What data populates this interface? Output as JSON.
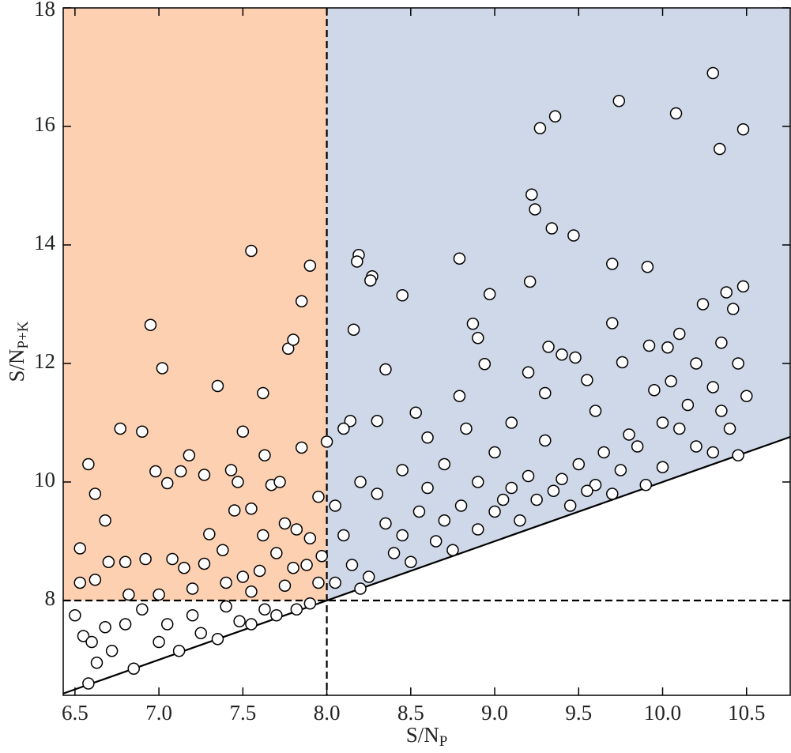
{
  "chart_data": {
    "type": "scatter",
    "xlabel": {
      "text": "S/N",
      "subscript": "P"
    },
    "ylabel": {
      "text": "S/N",
      "subscript": "P+K"
    },
    "xlim": [
      6.43,
      10.76
    ],
    "ylim": [
      6.4,
      18
    ],
    "xticks": [
      6.5,
      {
        "value": 7,
        "label": "7.0"
      },
      7.5,
      {
        "value": 8,
        "label": "8.0"
      },
      8.5,
      {
        "value": 9,
        "label": "9.0"
      },
      9.5,
      {
        "value": 10,
        "label": "10.0"
      },
      10.5
    ],
    "yticks": [
      8,
      10,
      12,
      14,
      16,
      18
    ],
    "vline": 8,
    "hline": 8,
    "identity_line": true,
    "left_region_color": "#fdd0b1",
    "right_region_color": "#cfd8e8",
    "marker_fill": "#ffffff",
    "marker_edge": "#000000",
    "x": [
      7.55,
      7.9,
      7.85,
      7.77,
      7.8,
      6.95,
      7.02,
      7.35,
      7.62,
      6.77,
      6.9,
      7.5,
      6.58,
      6.62,
      6.68,
      6.98,
      7.05,
      7.13,
      7.18,
      7.27,
      7.43,
      7.47,
      7.63,
      7.67,
      7.72,
      7.85,
      8.0,
      7.95,
      7.3,
      7.45,
      7.55,
      7.62,
      7.75,
      7.82,
      7.9,
      6.53,
      6.53,
      6.62,
      6.7,
      6.8,
      6.92,
      7.08,
      7.15,
      7.27,
      7.38,
      7.5,
      7.6,
      7.7,
      7.8,
      7.88,
      7.97,
      6.82,
      7.0,
      7.2,
      7.4,
      7.55,
      7.75,
      7.95,
      6.5,
      6.55,
      6.6,
      6.58,
      6.63,
      6.68,
      6.72,
      6.8,
      6.85,
      6.9,
      7.0,
      7.05,
      7.12,
      7.2,
      7.25,
      7.35,
      7.4,
      7.48,
      7.55,
      7.63,
      7.7,
      7.82,
      7.9,
      10.3,
      9.74,
      10.08,
      9.36,
      9.27,
      10.48,
      10.34,
      9.22,
      9.24,
      9.34,
      9.47,
      8.19,
      8.18,
      8.79,
      9.7,
      8.27,
      8.26,
      9.91,
      9.21,
      10.48,
      10.38,
      8.45,
      8.97,
      10.24,
      10.42,
      9.7,
      8.87,
      8.16,
      10.1,
      8.9,
      10.35,
      9.92,
      9.32,
      10.03,
      9.4,
      9.48,
      8.35,
      8.94,
      9.76,
      10.2,
      9.2,
      10.05,
      9.55,
      8.79,
      9.3,
      9.95,
      10.3,
      10.5,
      8.53,
      8.3,
      8.14,
      8.1,
      8.83,
      8.6,
      9.1,
      9.6,
      10.0,
      10.4,
      8.45,
      8.2,
      8.7,
      9.0,
      9.3,
      9.8,
      10.2,
      10.45,
      8.05,
      8.3,
      8.6,
      8.9,
      9.2,
      9.5,
      9.75,
      10.0,
      10.3,
      8.1,
      8.35,
      8.55,
      8.8,
      9.05,
      9.35,
      9.6,
      9.9,
      8.15,
      8.4,
      8.65,
      8.9,
      9.15,
      9.45,
      9.7,
      8.05,
      8.25,
      8.5,
      8.75,
      8.2,
      9.0,
      9.25,
      9.55,
      8.45,
      8.7,
      9.1,
      9.4,
      9.65,
      9.85,
      10.1,
      10.35,
      10.15,
      10.45
    ],
    "values": [
      13.9,
      13.65,
      13.05,
      12.25,
      12.4,
      12.65,
      11.92,
      11.62,
      11.5,
      10.9,
      10.85,
      10.85,
      10.3,
      9.8,
      9.35,
      10.18,
      9.98,
      10.18,
      10.45,
      10.12,
      10.2,
      10.0,
      10.45,
      9.95,
      10.0,
      10.58,
      10.68,
      9.75,
      9.12,
      9.52,
      9.55,
      9.1,
      9.3,
      9.2,
      9.05,
      8.88,
      8.3,
      8.35,
      8.65,
      8.65,
      8.7,
      8.7,
      8.55,
      8.62,
      8.85,
      8.4,
      8.5,
      8.8,
      8.55,
      8.6,
      8.75,
      8.1,
      8.1,
      8.2,
      8.3,
      8.15,
      8.25,
      8.3,
      7.75,
      7.4,
      7.3,
      6.6,
      6.95,
      7.55,
      7.15,
      7.6,
      6.85,
      7.85,
      7.3,
      7.6,
      7.15,
      7.75,
      7.45,
      7.35,
      7.9,
      7.65,
      7.6,
      7.85,
      7.75,
      7.85,
      7.95,
      16.9,
      16.43,
      16.22,
      16.17,
      15.97,
      15.95,
      15.62,
      14.85,
      14.6,
      14.28,
      14.16,
      13.83,
      13.72,
      13.77,
      13.68,
      13.47,
      13.4,
      13.63,
      13.38,
      13.3,
      13.2,
      13.15,
      13.17,
      13.0,
      12.92,
      12.68,
      12.67,
      12.57,
      12.5,
      12.43,
      12.35,
      12.3,
      12.28,
      12.27,
      12.15,
      12.1,
      11.9,
      11.99,
      12.02,
      12.0,
      11.85,
      11.7,
      11.72,
      11.45,
      11.5,
      11.55,
      11.6,
      11.45,
      11.17,
      11.03,
      11.03,
      10.9,
      10.9,
      10.75,
      11.0,
      11.2,
      11.0,
      10.9,
      10.2,
      10.0,
      10.3,
      10.5,
      10.7,
      10.8,
      10.6,
      10.45,
      9.6,
      9.8,
      9.9,
      10.0,
      10.1,
      10.3,
      10.2,
      10.25,
      10.5,
      9.1,
      9.3,
      9.5,
      9.6,
      9.7,
      9.85,
      9.95,
      9.95,
      8.6,
      8.8,
      9.0,
      9.2,
      9.35,
      9.6,
      9.8,
      8.3,
      8.4,
      8.65,
      8.85,
      8.2,
      9.5,
      9.7,
      9.85,
      9.1,
      9.35,
      9.9,
      10.05,
      10.5,
      10.6,
      10.9,
      11.2,
      11.3,
      12.0
    ]
  }
}
